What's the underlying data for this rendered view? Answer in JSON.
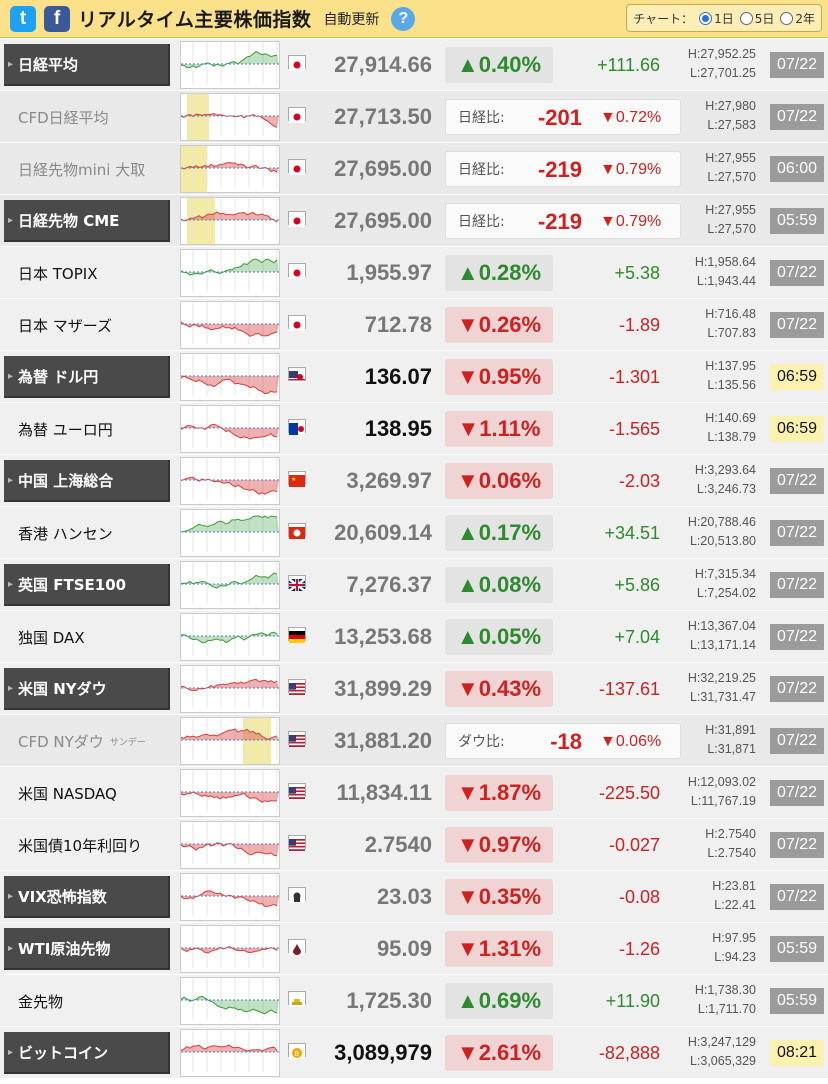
{
  "header": {
    "twitter_icon_text": "t",
    "facebook_icon_text": "f",
    "title": "リアルタイム主要株価指数",
    "auto_update": "自動更新",
    "help": "?",
    "chart_label": "チャート：",
    "options": [
      "1日",
      "5日",
      "2年"
    ],
    "selected": "1日"
  },
  "rows": [
    {
      "name": "日経平均",
      "price": "27,914.66",
      "pct": "▲0.40%",
      "change": "+111.66",
      "high": "H:27,952.25",
      "low": "L:27,701.25",
      "time": "07/22",
      "dir": "up",
      "flag": "jp"
    },
    {
      "name": "CFD日経平均",
      "price": "27,713.50",
      "cmp_label": "日経比:",
      "cmp_value": "-201",
      "cmp_pct": "▼0.72%",
      "high": "H:27,980",
      "low": "L:27,583",
      "time": "07/22",
      "flag": "jp"
    },
    {
      "name": "日経先物mini 大取",
      "price": "27,695.00",
      "cmp_label": "日経比:",
      "cmp_value": "-219",
      "cmp_pct": "▼0.79%",
      "high": "H:27,955",
      "low": "L:27,570",
      "time": "06:00",
      "flag": "jp"
    },
    {
      "name": "日経先物 CME",
      "price": "27,695.00",
      "cmp_label": "日経比:",
      "cmp_value": "-219",
      "cmp_pct": "▼0.79%",
      "high": "H:27,955",
      "low": "L:27,570",
      "time": "05:59",
      "flag": "jp"
    },
    {
      "name": "日本 TOPIX",
      "price": "1,955.97",
      "pct": "▲0.28%",
      "change": "+5.38",
      "high": "H:1,958.64",
      "low": "L:1,943.44",
      "time": "07/22",
      "dir": "up",
      "flag": "jp"
    },
    {
      "name": "日本 マザーズ",
      "price": "712.78",
      "pct": "▼0.26%",
      "change": "-1.89",
      "high": "H:716.48",
      "low": "L:707.83",
      "time": "07/22",
      "dir": "dn",
      "flag": "jp"
    },
    {
      "name": "為替 ドル円",
      "price": "136.07",
      "pct": "▼0.95%",
      "change": "-1.301",
      "high": "H:137.95",
      "low": "L:135.56",
      "time": "06:59",
      "dir": "dn",
      "flag": "usjp"
    },
    {
      "name": "為替 ユーロ円",
      "price": "138.95",
      "pct": "▼1.11%",
      "change": "-1.565",
      "high": "H:140.69",
      "low": "L:138.79",
      "time": "06:59",
      "dir": "dn",
      "flag": "eujp"
    },
    {
      "name": "中国 上海総合",
      "price": "3,269.97",
      "pct": "▼0.06%",
      "change": "-2.03",
      "high": "H:3,293.64",
      "low": "L:3,246.73",
      "time": "07/22",
      "dir": "dn",
      "flag": "cn"
    },
    {
      "name": "香港 ハンセン",
      "price": "20,609.14",
      "pct": "▲0.17%",
      "change": "+34.51",
      "high": "H:20,788.46",
      "low": "L:20,513.80",
      "time": "07/22",
      "dir": "up",
      "flag": "hk"
    },
    {
      "name": "英国 FTSE100",
      "price": "7,276.37",
      "pct": "▲0.08%",
      "change": "+5.86",
      "high": "H:7,315.34",
      "low": "L:7,254.02",
      "time": "07/22",
      "dir": "up",
      "flag": "uk"
    },
    {
      "name": "独国 DAX",
      "price": "13,253.68",
      "pct": "▲0.05%",
      "change": "+7.04",
      "high": "H:13,367.04",
      "low": "L:13,171.14",
      "time": "07/22",
      "dir": "up",
      "flag": "de"
    },
    {
      "name": "米国 NYダウ",
      "price": "31,899.29",
      "pct": "▼0.43%",
      "change": "-137.61",
      "high": "H:32,219.25",
      "low": "L:31,731.47",
      "time": "07/22",
      "dir": "dn",
      "flag": "us"
    },
    {
      "name": "CFD NYダウ",
      "name_sub": "サンデー",
      "price": "31,881.20",
      "cmp_label": "ダウ比:",
      "cmp_value": "-18",
      "cmp_pct": "▼0.06%",
      "high": "H:31,891",
      "low": "L:31,871",
      "time": "07/22",
      "flag": "us"
    },
    {
      "name": "米国 NASDAQ",
      "price": "11,834.11",
      "pct": "▼1.87%",
      "change": "-225.50",
      "high": "H:12,093.02",
      "low": "L:11,767.19",
      "time": "07/22",
      "dir": "dn",
      "flag": "us"
    },
    {
      "name": "米国債10年利回り",
      "price": "2.7540",
      "pct": "▼0.97%",
      "change": "-0.027",
      "high": "H:2.7540",
      "low": "L:2.7540",
      "time": "07/22",
      "dir": "dn",
      "flag": "us"
    },
    {
      "name": "VIX恐怖指数",
      "price": "23.03",
      "pct": "▼0.35%",
      "change": "-0.08",
      "high": "H:23.81",
      "low": "L:22.41",
      "time": "07/22",
      "dir": "dn",
      "flag": "vix"
    },
    {
      "name": "WTI原油先物",
      "price": "95.09",
      "pct": "▼1.31%",
      "change": "-1.26",
      "high": "H:97.95",
      "low": "L:94.23",
      "time": "05:59",
      "dir": "dn",
      "flag": "oil"
    },
    {
      "name": "金先物",
      "price": "1,725.30",
      "pct": "▲0.69%",
      "change": "+11.90",
      "high": "H:1,738.30",
      "low": "L:1,711.70",
      "time": "05:59",
      "dir": "up",
      "flag": "gold"
    },
    {
      "name": "ビットコイン",
      "price": "3,089,979",
      "pct": "▼2.61%",
      "change": "-82,888",
      "high": "H:3,247,129",
      "low": "L:3,065,329",
      "time": "08:21",
      "dir": "dn",
      "flag": "btc"
    }
  ]
}
